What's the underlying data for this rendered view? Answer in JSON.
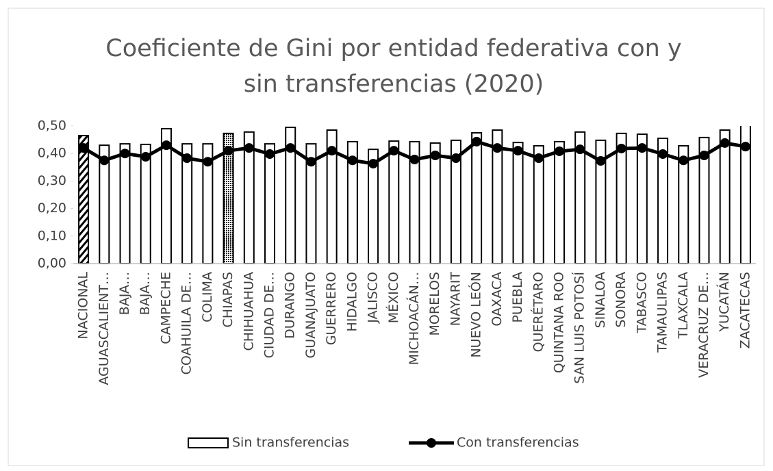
{
  "chart_data": {
    "type": "bar",
    "title": "Coeficiente de Gini por entidad federativa con  y sin transferencias (2020)",
    "categories": [
      "NACIONAL",
      "AGUASCALIENT…",
      "BAJA…",
      "BAJA…",
      "CAMPECHE",
      "COAHUILA DE…",
      "COLIMA",
      "CHIAPAS",
      "CHIHUAHUA",
      "CIUDAD DE…",
      "DURANGO",
      "GUANAJUATO",
      "GUERRERO",
      "HIDALGO",
      "JALISCO",
      "MÉXICO",
      "MICHOACÁN…",
      "MORELOS",
      "NAYARIT",
      "NUEVO LEÓN",
      "OAXACA",
      "PUEBLA",
      "QUERÉTARO",
      "QUINTANA ROO",
      "SAN LUIS POTOSÍ",
      "SINALOA",
      "SONORA",
      "TABASCO",
      "TAMAULIPAS",
      "TLAXCALA",
      "VERACRUZ DE…",
      "YUCATÁN",
      "ZACATECAS"
    ],
    "series": [
      {
        "name": "Sin transferencias",
        "type": "bar",
        "color": "#ffffff",
        "stroke": "#000000",
        "patterns": [
          "hatch",
          "solid",
          "solid",
          "solid",
          "solid",
          "solid",
          "solid",
          "dots",
          "solid",
          "solid",
          "solid",
          "solid",
          "solid",
          "solid",
          "solid",
          "solid",
          "solid",
          "solid",
          "solid",
          "solid",
          "solid",
          "solid",
          "solid",
          "solid",
          "solid",
          "solid",
          "solid",
          "solid",
          "solid",
          "solid",
          "solid",
          "solid",
          "solid"
        ],
        "values": [
          0.465,
          0.43,
          0.435,
          0.433,
          0.49,
          0.435,
          0.435,
          0.473,
          0.478,
          0.435,
          0.495,
          0.435,
          0.485,
          0.443,
          0.415,
          0.445,
          0.443,
          0.438,
          0.448,
          0.475,
          0.485,
          0.44,
          0.428,
          0.443,
          0.478,
          0.448,
          0.473,
          0.47,
          0.455,
          0.428,
          0.458,
          0.485,
          0.52
        ]
      },
      {
        "name": "Con transferencias",
        "type": "line",
        "color": "#000000",
        "values": [
          0.42,
          0.375,
          0.4,
          0.388,
          0.43,
          0.383,
          0.37,
          0.41,
          0.42,
          0.398,
          0.42,
          0.37,
          0.41,
          0.375,
          0.363,
          0.41,
          0.378,
          0.393,
          0.383,
          0.443,
          0.42,
          0.41,
          0.383,
          0.408,
          0.415,
          0.373,
          0.418,
          0.42,
          0.398,
          0.375,
          0.393,
          0.438,
          0.425
        ]
      }
    ],
    "ylim": [
      0,
      0.5
    ],
    "yticks": [
      {
        "value": 0,
        "label": "0,00"
      },
      {
        "value": 0.1,
        "label": "0,10"
      },
      {
        "value": 0.2,
        "label": "0,20"
      },
      {
        "value": 0.3,
        "label": "0,30"
      },
      {
        "value": 0.4,
        "label": "0,40"
      },
      {
        "value": 0.5,
        "label": "0,50"
      }
    ],
    "grid": false,
    "legend": "bottom"
  }
}
